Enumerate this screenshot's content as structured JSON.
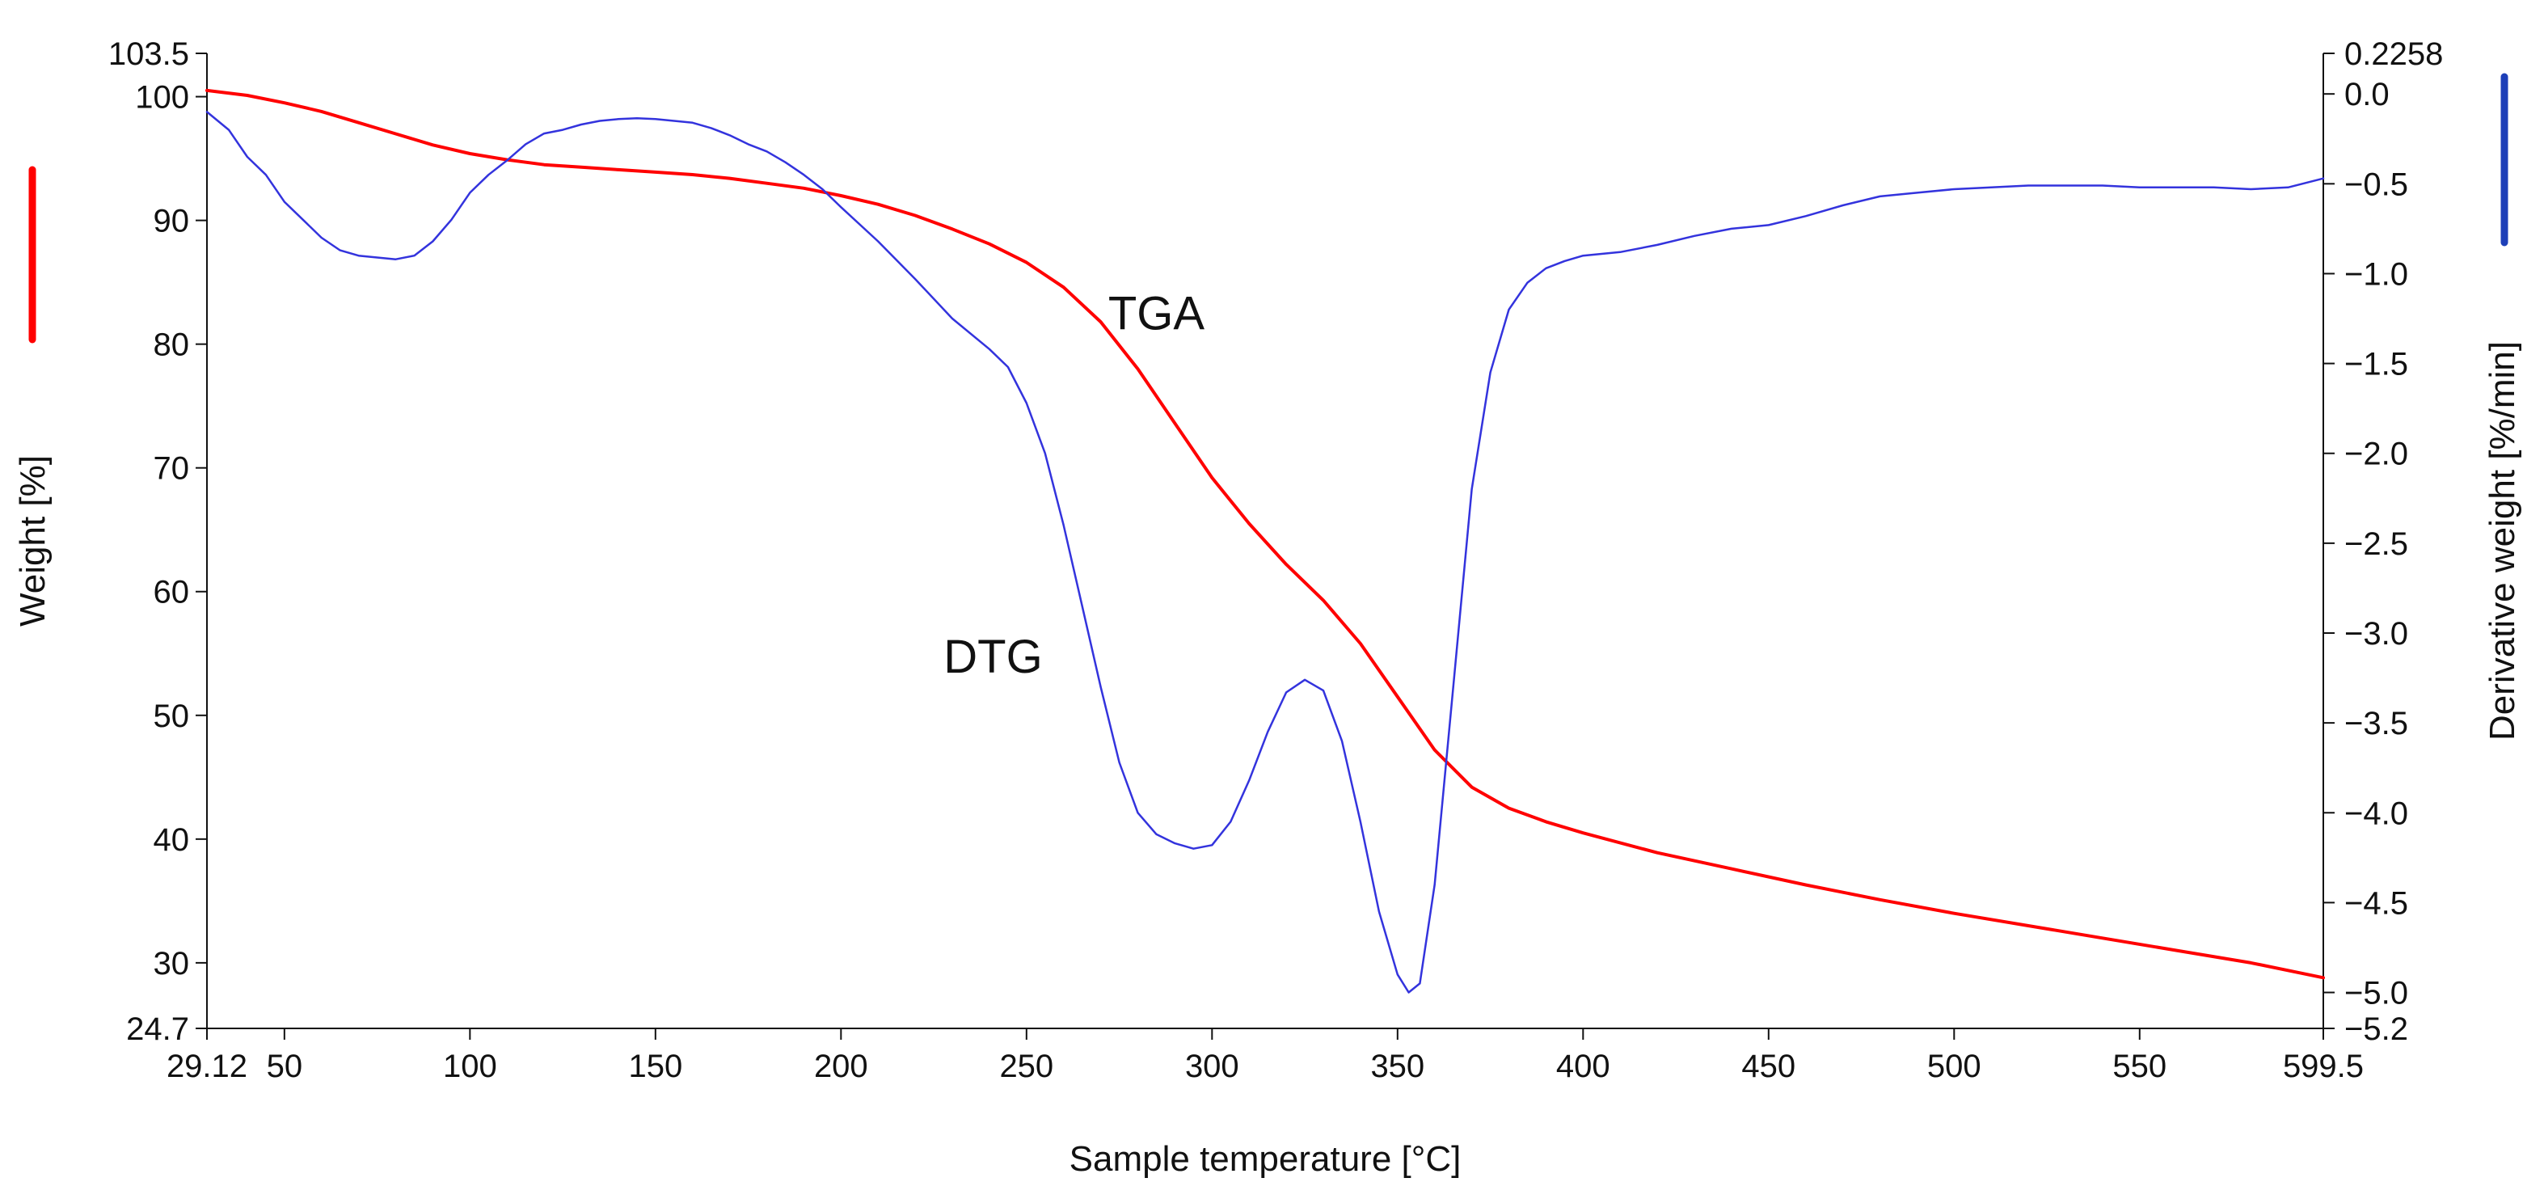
{
  "chart_data": {
    "type": "line",
    "xlabel": "Sample temperature [°C]",
    "y_left_label": "Weight [%]",
    "y_right_label": "Derivative weight [%/min]",
    "x_range": [
      29.12,
      599.5
    ],
    "y_left_range": [
      24.7,
      103.5
    ],
    "y_right_range": [
      -5.2,
      0.2258
    ],
    "x_ticks": [
      {
        "v": 29.12,
        "label": "29.12"
      },
      {
        "v": 50,
        "label": "50"
      },
      {
        "v": 100,
        "label": "100"
      },
      {
        "v": 150,
        "label": "150"
      },
      {
        "v": 200,
        "label": "200"
      },
      {
        "v": 250,
        "label": "250"
      },
      {
        "v": 300,
        "label": "300"
      },
      {
        "v": 350,
        "label": "350"
      },
      {
        "v": 400,
        "label": "400"
      },
      {
        "v": 450,
        "label": "450"
      },
      {
        "v": 500,
        "label": "500"
      },
      {
        "v": 550,
        "label": "550"
      },
      {
        "v": 599.5,
        "label": "599.5"
      }
    ],
    "y_left_ticks": [
      {
        "v": 103.5,
        "label": "103.5"
      },
      {
        "v": 100,
        "label": "100"
      },
      {
        "v": 90,
        "label": "90"
      },
      {
        "v": 80,
        "label": "80"
      },
      {
        "v": 70,
        "label": "70"
      },
      {
        "v": 60,
        "label": "60"
      },
      {
        "v": 50,
        "label": "50"
      },
      {
        "v": 40,
        "label": "40"
      },
      {
        "v": 30,
        "label": "30"
      },
      {
        "v": 24.7,
        "label": "24.7"
      }
    ],
    "y_right_ticks": [
      {
        "v": 0.2258,
        "label": "0.2258"
      },
      {
        "v": 0.0,
        "label": "0.0"
      },
      {
        "v": -0.5,
        "label": "−0.5"
      },
      {
        "v": -1.0,
        "label": "−1.0"
      },
      {
        "v": -1.5,
        "label": "−1.5"
      },
      {
        "v": -2.0,
        "label": "−2.0"
      },
      {
        "v": -2.5,
        "label": "−2.5"
      },
      {
        "v": -3.0,
        "label": "−3.0"
      },
      {
        "v": -3.5,
        "label": "−3.5"
      },
      {
        "v": -4.0,
        "label": "−4.0"
      },
      {
        "v": -4.5,
        "label": "−4.5"
      },
      {
        "v": -5.0,
        "label": "−5.0"
      },
      {
        "v": -5.2,
        "label": "−5.2"
      }
    ],
    "series": [
      {
        "name": "TGA",
        "axis": "left",
        "color": "#ff0000",
        "points": [
          [
            29.12,
            100.5
          ],
          [
            40,
            100.1
          ],
          [
            50,
            99.5
          ],
          [
            60,
            98.8
          ],
          [
            70,
            97.9
          ],
          [
            80,
            97.0
          ],
          [
            90,
            96.1
          ],
          [
            100,
            95.4
          ],
          [
            110,
            94.9
          ],
          [
            120,
            94.5
          ],
          [
            130,
            94.3
          ],
          [
            140,
            94.1
          ],
          [
            150,
            93.9
          ],
          [
            160,
            93.7
          ],
          [
            170,
            93.4
          ],
          [
            180,
            93.0
          ],
          [
            190,
            92.6
          ],
          [
            200,
            92.0
          ],
          [
            210,
            91.3
          ],
          [
            220,
            90.4
          ],
          [
            230,
            89.3
          ],
          [
            240,
            88.1
          ],
          [
            250,
            86.6
          ],
          [
            260,
            84.6
          ],
          [
            270,
            81.8
          ],
          [
            280,
            78.0
          ],
          [
            290,
            73.6
          ],
          [
            300,
            69.2
          ],
          [
            310,
            65.5
          ],
          [
            320,
            62.2
          ],
          [
            330,
            59.3
          ],
          [
            340,
            55.8
          ],
          [
            350,
            51.5
          ],
          [
            360,
            47.2
          ],
          [
            370,
            44.2
          ],
          [
            380,
            42.5
          ],
          [
            390,
            41.4
          ],
          [
            400,
            40.5
          ],
          [
            420,
            38.9
          ],
          [
            440,
            37.6
          ],
          [
            460,
            36.3
          ],
          [
            480,
            35.1
          ],
          [
            500,
            34.0
          ],
          [
            520,
            33.0
          ],
          [
            540,
            32.0
          ],
          [
            560,
            31.0
          ],
          [
            580,
            30.0
          ],
          [
            599.5,
            28.8
          ]
        ]
      },
      {
        "name": "DTG",
        "axis": "right",
        "color": "#3333dd",
        "points": [
          [
            29.12,
            -0.1
          ],
          [
            35,
            -0.2
          ],
          [
            40,
            -0.35
          ],
          [
            45,
            -0.45
          ],
          [
            50,
            -0.6
          ],
          [
            55,
            -0.7
          ],
          [
            60,
            -0.8
          ],
          [
            65,
            -0.87
          ],
          [
            70,
            -0.9
          ],
          [
            75,
            -0.91
          ],
          [
            80,
            -0.92
          ],
          [
            85,
            -0.9
          ],
          [
            90,
            -0.82
          ],
          [
            95,
            -0.7
          ],
          [
            100,
            -0.55
          ],
          [
            105,
            -0.45
          ],
          [
            110,
            -0.37
          ],
          [
            115,
            -0.28
          ],
          [
            120,
            -0.22
          ],
          [
            125,
            -0.2
          ],
          [
            130,
            -0.17
          ],
          [
            135,
            -0.15
          ],
          [
            140,
            -0.14
          ],
          [
            145,
            -0.135
          ],
          [
            150,
            -0.14
          ],
          [
            155,
            -0.15
          ],
          [
            160,
            -0.16
          ],
          [
            165,
            -0.19
          ],
          [
            170,
            -0.23
          ],
          [
            175,
            -0.28
          ],
          [
            180,
            -0.32
          ],
          [
            185,
            -0.38
          ],
          [
            190,
            -0.45
          ],
          [
            195,
            -0.53
          ],
          [
            200,
            -0.63
          ],
          [
            210,
            -0.82
          ],
          [
            220,
            -1.03
          ],
          [
            230,
            -1.25
          ],
          [
            240,
            -1.42
          ],
          [
            245,
            -1.52
          ],
          [
            250,
            -1.72
          ],
          [
            255,
            -2.0
          ],
          [
            260,
            -2.4
          ],
          [
            265,
            -2.85
          ],
          [
            270,
            -3.3
          ],
          [
            275,
            -3.72
          ],
          [
            280,
            -4.0
          ],
          [
            285,
            -4.12
          ],
          [
            290,
            -4.17
          ],
          [
            295,
            -4.2
          ],
          [
            300,
            -4.18
          ],
          [
            305,
            -4.05
          ],
          [
            310,
            -3.82
          ],
          [
            315,
            -3.55
          ],
          [
            320,
            -3.33
          ],
          [
            325,
            -3.26
          ],
          [
            330,
            -3.32
          ],
          [
            335,
            -3.6
          ],
          [
            340,
            -4.05
          ],
          [
            345,
            -4.55
          ],
          [
            350,
            -4.9
          ],
          [
            353,
            -5.0
          ],
          [
            356,
            -4.95
          ],
          [
            360,
            -4.4
          ],
          [
            365,
            -3.3
          ],
          [
            370,
            -2.2
          ],
          [
            375,
            -1.55
          ],
          [
            380,
            -1.2
          ],
          [
            385,
            -1.05
          ],
          [
            390,
            -0.97
          ],
          [
            395,
            -0.93
          ],
          [
            400,
            -0.9
          ],
          [
            410,
            -0.88
          ],
          [
            420,
            -0.84
          ],
          [
            430,
            -0.79
          ],
          [
            440,
            -0.75
          ],
          [
            450,
            -0.73
          ],
          [
            460,
            -0.68
          ],
          [
            470,
            -0.62
          ],
          [
            480,
            -0.57
          ],
          [
            490,
            -0.55
          ],
          [
            500,
            -0.53
          ],
          [
            510,
            -0.52
          ],
          [
            520,
            -0.51
          ],
          [
            530,
            -0.51
          ],
          [
            540,
            -0.51
          ],
          [
            550,
            -0.52
          ],
          [
            560,
            -0.52
          ],
          [
            570,
            -0.52
          ],
          [
            580,
            -0.53
          ],
          [
            590,
            -0.52
          ],
          [
            599.5,
            -0.47
          ]
        ]
      }
    ],
    "annotations": [
      {
        "text": "TGA",
        "x": 285,
        "y_right": -1.22
      },
      {
        "text": "DTG",
        "x": 241,
        "y_right": -3.13
      }
    ],
    "legend_swatches": [
      {
        "side": "left",
        "color": "#ff0000"
      },
      {
        "side": "right",
        "color": "#1d3fb8"
      }
    ]
  }
}
